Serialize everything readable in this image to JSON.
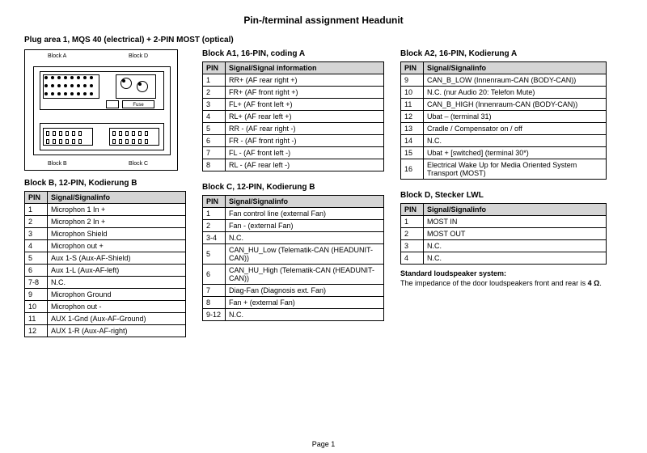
{
  "title": "Pin-/terminal assignment Headunit",
  "subtitle": "Plug area 1, MQS 40 (electrical) + 2-PIN MOST (optical)",
  "page_label": "Page 1",
  "diagram": {
    "labels": {
      "a": "Block A",
      "b": "Block B",
      "c": "Block C",
      "d": "Block D",
      "fuse": "Fuse"
    }
  },
  "col_headers": {
    "pin": "PIN",
    "sig_long": "Signal/Signal information",
    "sig_short": "Signal/Signalinfo"
  },
  "blockA1": {
    "heading": "Block A1, 16-PIN, coding A",
    "rows": [
      [
        "1",
        "RR+ (AF rear right +)"
      ],
      [
        "2",
        "FR+ (AF front right +)"
      ],
      [
        "3",
        "FL+ (AF front left +)"
      ],
      [
        "4",
        "RL+ (AF rear left +)"
      ],
      [
        "5",
        "RR - (AF rear right -)"
      ],
      [
        "6",
        "FR - (AF front right -)"
      ],
      [
        "7",
        "FL - (AF front left -)"
      ],
      [
        "8",
        "RL - (AF rear left -)"
      ]
    ]
  },
  "blockA2": {
    "heading": "Block A2, 16-PIN, Kodierung A",
    "rows": [
      [
        "9",
        "CAN_B_LOW (Innenraum-CAN (BODY-CAN))"
      ],
      [
        "10",
        "N.C. (nur Audio 20: Telefon Mute)"
      ],
      [
        "11",
        "CAN_B_HIGH (Innenraum-CAN (BODY-CAN))"
      ],
      [
        "12",
        "Ubat – (terminal 31)"
      ],
      [
        "13",
        "Cradle / Compensator on / off"
      ],
      [
        "14",
        "N.C."
      ],
      [
        "15",
        "Ubat + [switched] (terminal 30*)"
      ],
      [
        "16",
        "Electrical Wake Up for Media Oriented System Transport (MOST)"
      ]
    ]
  },
  "blockB": {
    "heading": "Block B, 12-PIN, Kodierung B",
    "rows": [
      [
        "1",
        "Microphon 1 In +"
      ],
      [
        "2",
        "Microphon 2 In +"
      ],
      [
        "3",
        "Microphon Shield"
      ],
      [
        "4",
        "Microphon out +"
      ],
      [
        "5",
        "Aux 1-S (Aux-AF-Shield)"
      ],
      [
        "6",
        "Aux 1-L (Aux-AF-left)"
      ],
      [
        "7-8",
        "N.C."
      ],
      [
        "9",
        "Microphon Ground"
      ],
      [
        "10",
        "Microphon out -"
      ],
      [
        "11",
        "AUX 1-Gnd (Aux-AF-Ground)"
      ],
      [
        "12",
        "AUX 1-R (Aux-AF-right)"
      ]
    ]
  },
  "blockC": {
    "heading": "Block C, 12-PIN, Kodierung B",
    "rows": [
      [
        "1",
        "Fan control line (external Fan)"
      ],
      [
        "2",
        "Fan - (external Fan)"
      ],
      [
        "3-4",
        "N.C."
      ],
      [
        "5",
        "CAN_HU_Low (Telematik-CAN (HEADUNIT-CAN))"
      ],
      [
        "6",
        "CAN_HU_High (Telematik-CAN (HEADUNIT-CAN))"
      ],
      [
        "7",
        "Diag-Fan (Diagnosis ext. Fan)"
      ],
      [
        "8",
        "Fan + (external Fan)"
      ],
      [
        "9-12",
        "N.C."
      ]
    ]
  },
  "blockD": {
    "heading": "Block D, Stecker LWL",
    "rows": [
      [
        "1",
        "MOST IN"
      ],
      [
        "2",
        "MOST OUT"
      ],
      [
        "3",
        "N.C."
      ],
      [
        "4",
        "N.C."
      ]
    ]
  },
  "note": {
    "heading": "Standard loudspeaker system:",
    "text1": "The impedance of the door loudspeakers front and rear is ",
    "bold": "4 Ω",
    "text2": "."
  }
}
